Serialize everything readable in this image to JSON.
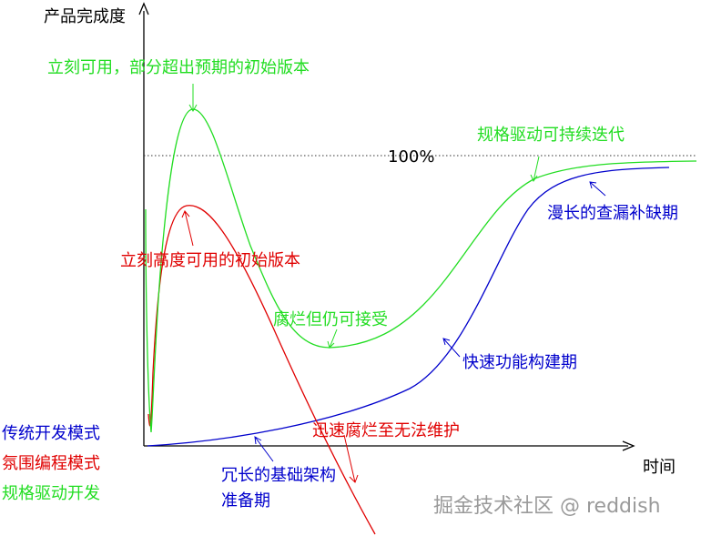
{
  "axes": {
    "y_label": "产品完成度",
    "x_label": "时间",
    "reference_label": "100%"
  },
  "colors": {
    "traditional": "#0000cc",
    "vibe": "#e00000",
    "spec": "#22dd22",
    "axis": "#000000",
    "watermark": "#9a9a9a"
  },
  "annotations": {
    "green_peak": "立刻可用，部分超出预期的初始版本",
    "green_late": "规格驱动可持续迭代",
    "green_dip": "腐烂但仍可接受",
    "red_peak": "立刻高度可用的初始版本",
    "red_decay": "迅速腐烂至无法维护",
    "blue_late": "漫长的查漏补缺期",
    "blue_mid": "快速功能构建期",
    "blue_early_1": "冗长的基础架构",
    "blue_early_2": "准备期"
  },
  "legend": {
    "traditional": "传统开发模式",
    "vibe": "氛围编程模式",
    "spec": "规格驱动开发"
  },
  "watermark": "掘金技术社区 @ reddish"
}
